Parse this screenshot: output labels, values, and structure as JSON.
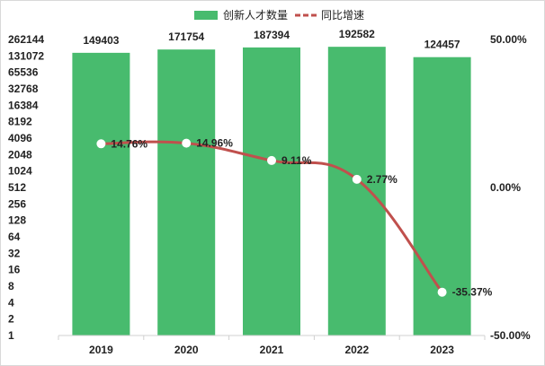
{
  "chart_data": {
    "type": "bar",
    "categories": [
      "2019",
      "2020",
      "2021",
      "2022",
      "2023"
    ],
    "series": [
      {
        "name": "创新人才数量",
        "type": "bar",
        "axis": "left",
        "scale": "log2",
        "values": [
          149403,
          171754,
          187394,
          192582,
          124457
        ],
        "value_labels": [
          "149403",
          "171754",
          "187394",
          "192582",
          "124457"
        ],
        "color": "#48bb6e"
      },
      {
        "name": "同比增速",
        "type": "line",
        "axis": "right",
        "smooth": true,
        "values": [
          14.76,
          14.96,
          9.11,
          2.77,
          -35.37
        ],
        "value_labels": [
          "14.76%",
          "14.96%",
          "9.11%",
          "2.77%",
          "-35.37%"
        ],
        "color": "#c0504d"
      }
    ],
    "y_left": {
      "scale": "log2",
      "range": [
        1,
        262144
      ],
      "tick_labels": [
        "1",
        "2",
        "4",
        "8",
        "16",
        "32",
        "64",
        "128",
        "256",
        "512",
        "1024",
        "2048",
        "4096",
        "8192",
        "16384",
        "32768",
        "65536",
        "131072",
        "262144"
      ]
    },
    "y_right": {
      "range": [
        -50,
        50
      ],
      "tick_values": [
        -50,
        0,
        50
      ],
      "tick_labels": [
        "-50.00%",
        "0.00%",
        "50.00%"
      ]
    },
    "legend": {
      "position": "top-center"
    },
    "grid": false
  }
}
